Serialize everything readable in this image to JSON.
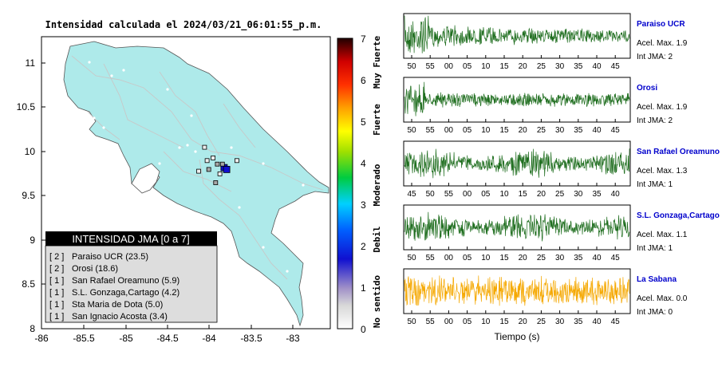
{
  "colors": {
    "land": "#aeeaea",
    "trace_normal": "#1f6e1f",
    "trace_zero": "#f5a800",
    "station_name": "#0000cc",
    "legend_header_bg": "#000000",
    "legend_body_bg": "#dddddd"
  },
  "map": {
    "title": "Intensidad calculada el 2024/03/21_06:01:55_p.m.",
    "legend_header": "INTENSIDAD JMA [0 a 7]",
    "legend_items": [
      {
        "jma": "[ 2 ]",
        "text": "Paraiso UCR (23.5)"
      },
      {
        "jma": "[ 2 ]",
        "text": "Orosi (18.6)"
      },
      {
        "jma": "[ 1 ]",
        "text": "San Rafael Oreamuno (5.9)"
      },
      {
        "jma": "[ 1 ]",
        "text": "S.L. Gonzaga,Cartago (4.2)"
      },
      {
        "jma": "[ 1 ]",
        "text": "Sta Maria de Dota (5.0)"
      },
      {
        "jma": "[ 1 ]",
        "text": "San Ignacio Acosta (3.4)"
      }
    ],
    "x_ticks": [
      "-86",
      "-85.5",
      "-85",
      "-84.5",
      "-84",
      "-83.5",
      "-83"
    ],
    "y_ticks": [
      "11",
      "10.5",
      "10",
      "9.5",
      "9",
      "8.5",
      "8"
    ]
  },
  "colorbar": {
    "ticks": [
      "7",
      "6",
      "5",
      "4",
      "3",
      "2",
      "1",
      "0"
    ],
    "labels": [
      "Muy Fuerte",
      "Fuerte",
      "Moderado",
      "Debil",
      "No sentido"
    ]
  },
  "stations": [
    {
      "name": "Paraiso UCR",
      "acel": "Acel. Max. 1.9",
      "jma": "Int JMA: 2",
      "ticks": [
        "50",
        "55",
        "00",
        "05",
        "10",
        "15",
        "20",
        "25",
        "30",
        "35",
        "40",
        "45"
      ],
      "zero": false
    },
    {
      "name": "Orosi",
      "acel": "Acel. Max. 1.9",
      "jma": "Int JMA: 2",
      "ticks": [
        "50",
        "55",
        "00",
        "05",
        "10",
        "15",
        "20",
        "25",
        "30",
        "35",
        "40",
        "45"
      ],
      "zero": false
    },
    {
      "name": "San Rafael Oreamuno",
      "acel": "Acel. Max. 1.3",
      "jma": "Int JMA: 1",
      "ticks": [
        "45",
        "50",
        "55",
        "00",
        "05",
        "10",
        "15",
        "20",
        "25",
        "30",
        "35",
        "40"
      ],
      "zero": false
    },
    {
      "name": "S.L. Gonzaga,Cartago",
      "acel": "Acel. Max. 1.1",
      "jma": "Int JMA: 1",
      "ticks": [
        "50",
        "55",
        "00",
        "05",
        "10",
        "15",
        "20",
        "25",
        "30",
        "35",
        "40",
        "45"
      ],
      "zero": false
    },
    {
      "name": "La Sabana",
      "acel": "Acel. Max. 0.0",
      "jma": "Int JMA: 0",
      "ticks": [
        "50",
        "55",
        "00",
        "05",
        "10",
        "15",
        "20",
        "25",
        "30",
        "35",
        "40",
        "45"
      ],
      "zero": true
    }
  ],
  "time_axis_label": "Tiempo (s)",
  "chart_data": [
    {
      "type": "scatter",
      "title": "Intensidad calculada el 2024/03/21_06:01:55_p.m.",
      "xlim": [
        -86,
        -82.6
      ],
      "ylim": [
        8,
        11.3
      ],
      "station_points": [
        {
          "x": -83.85,
          "y": 9.82,
          "jma": 2
        },
        {
          "x": -83.82,
          "y": 9.8,
          "jma": 2
        },
        {
          "x": -83.87,
          "y": 9.86,
          "jma": 1
        },
        {
          "x": -83.93,
          "y": 9.86,
          "jma": 1
        },
        {
          "x": -83.95,
          "y": 9.65,
          "jma": 1
        },
        {
          "x": -84.03,
          "y": 9.8,
          "jma": 1
        },
        {
          "x": -84.05,
          "y": 9.9,
          "jma": 0
        },
        {
          "x": -83.98,
          "y": 9.93,
          "jma": 0
        },
        {
          "x": -84.08,
          "y": 10.05,
          "jma": 0
        },
        {
          "x": -84.15,
          "y": 9.78,
          "jma": 0
        },
        {
          "x": -83.7,
          "y": 9.9,
          "jma": 0
        },
        {
          "x": -83.9,
          "y": 9.75,
          "jma": 0
        }
      ]
    },
    {
      "type": "line",
      "series": [
        {
          "name": "Paraiso UCR"
        },
        {
          "name": "Orosi"
        },
        {
          "name": "San Rafael Oreamuno"
        },
        {
          "name": "S.L. Gonzaga,Cartago"
        },
        {
          "name": "La Sabana"
        }
      ],
      "xlabel": "Tiempo (s)"
    }
  ]
}
